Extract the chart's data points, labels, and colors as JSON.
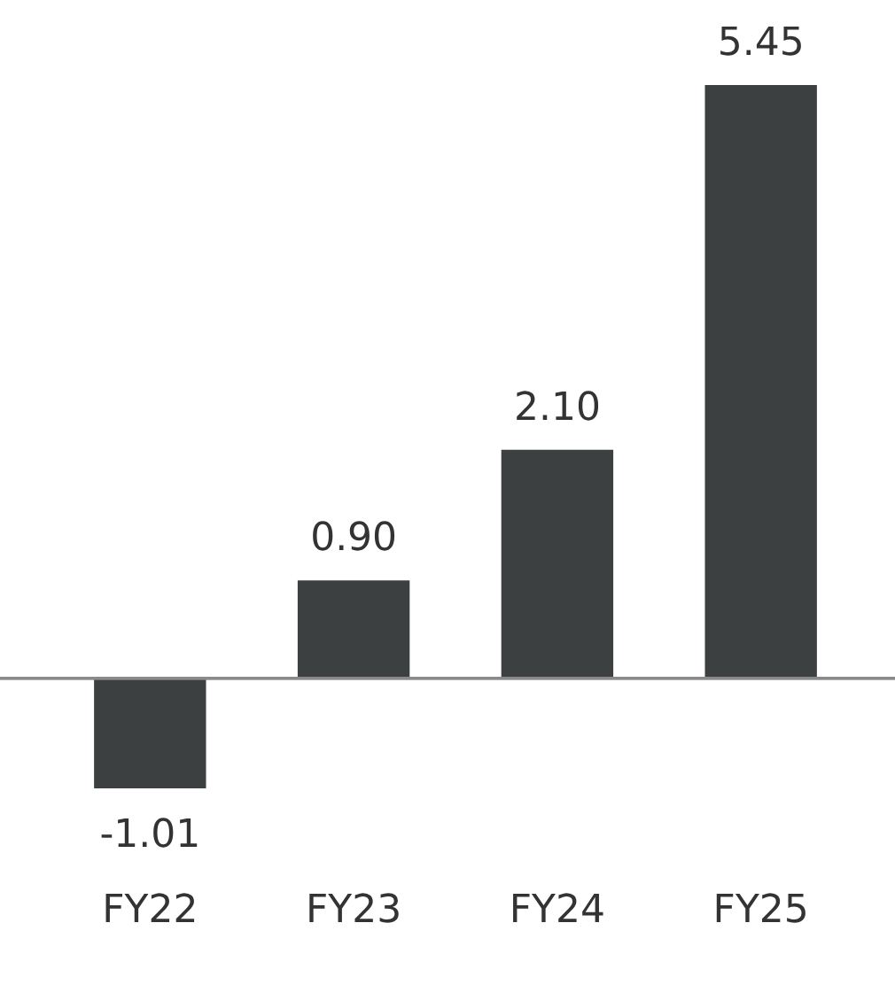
{
  "chart_data": {
    "type": "bar",
    "categories": [
      "FY22",
      "FY23",
      "FY24",
      "FY25"
    ],
    "values": [
      -1.01,
      0.9,
      2.1,
      5.45
    ],
    "color": "#3d4040",
    "value_labels": [
      "-1.01",
      "0.90",
      "2.10",
      "5.45"
    ],
    "tick_labels": "x"
  }
}
